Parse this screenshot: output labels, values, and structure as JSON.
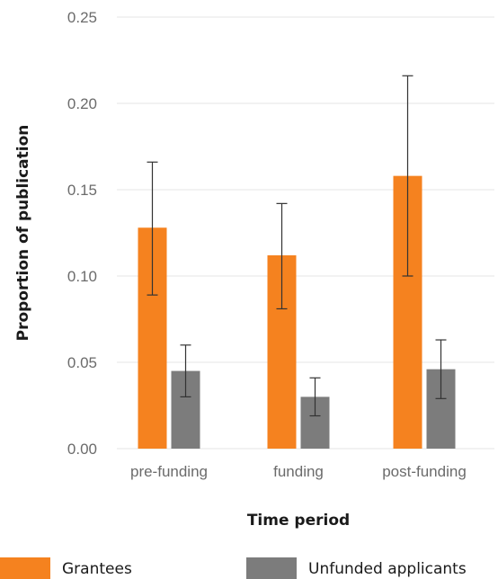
{
  "chart_data": {
    "type": "bar",
    "title": "",
    "xlabel": "Time period",
    "ylabel": "Proportion of publication",
    "categories": [
      "pre-funding",
      "funding",
      "post-funding"
    ],
    "ylim": [
      0,
      0.25
    ],
    "yticks": [
      "0.00",
      "0.05",
      "0.10",
      "0.15",
      "0.20",
      "0.25"
    ],
    "grid": true,
    "legend_position": "bottom",
    "series": [
      {
        "name": "Grantees",
        "color": "#f5821f",
        "values": [
          0.128,
          0.112,
          0.158
        ],
        "error_low": [
          0.089,
          0.081,
          0.1
        ],
        "error_high": [
          0.166,
          0.142,
          0.216
        ]
      },
      {
        "name": "Unfunded applicants",
        "color": "#7c7c7c",
        "values": [
          0.045,
          0.03,
          0.046
        ],
        "error_low": [
          0.03,
          0.019,
          0.029
        ],
        "error_high": [
          0.06,
          0.041,
          0.063
        ]
      }
    ]
  }
}
